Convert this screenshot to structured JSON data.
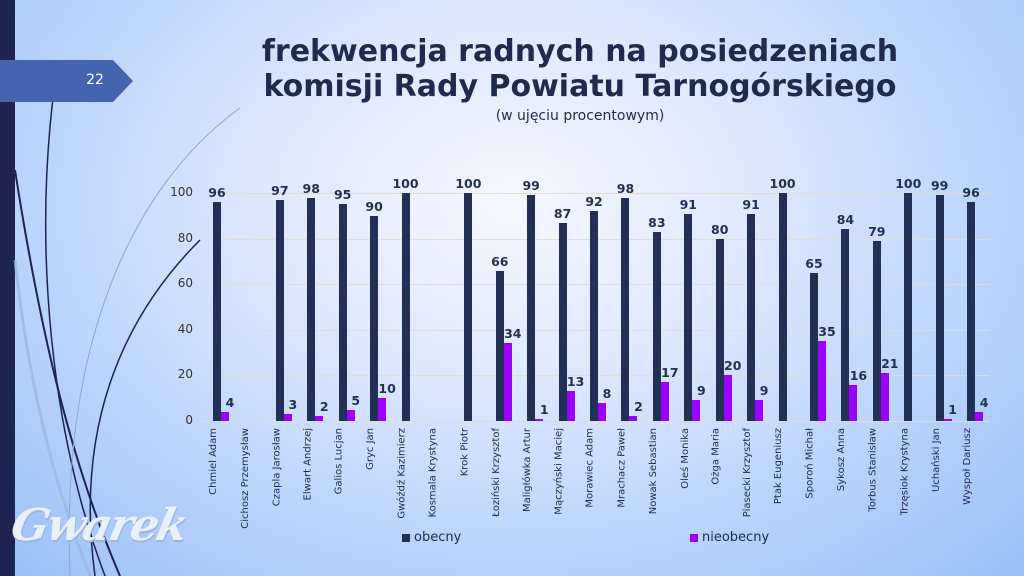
{
  "slide": {
    "number": "22",
    "title_line1": "frekwencja radnych na posiedzeniach",
    "title_line2": "komisji Rady Powiatu Tarnogórskiego",
    "subtitle": "(w ujęciu procentowym)",
    "logo_text": "Gwarek"
  },
  "colors": {
    "obecny": "#233055",
    "nieobecny": "#9900ff",
    "accent_tab": "#4563ae",
    "left_strip": "#1f2350"
  },
  "chart_data": {
    "type": "bar",
    "title": "frekwencja radnych na posiedzeniach komisji Rady Powiatu Tarnogórskiego",
    "subtitle": "(w ujęciu procentowym)",
    "xlabel": "",
    "ylabel": "",
    "ylim": [
      0,
      100
    ],
    "yticks": [
      0,
      20,
      40,
      60,
      80,
      100
    ],
    "grid": true,
    "legend_position": "bottom",
    "categories": [
      "Chmiel Adam",
      "Cichosz Przemysław",
      "Czapla Jarosław",
      "Elwart Andrzej",
      "Galios Lucjan",
      "Gryc Jan",
      "Gwóźdź Kazimierz",
      "Kosmala Krystyna",
      "Krok Piotr",
      "Łoziński Krzysztof",
      "Maligłówka Artur",
      "Mączyński Maciej",
      "Morawiec Adam",
      "Mrachacz Paweł",
      "Nowak Sebastian",
      "Oleś Monika",
      "Ożga Maria",
      "Piasecki Krzysztof",
      "Ptak Eugeniusz",
      "Sporoń Michał",
      "Sykosz Anna",
      "Torbus Stanisław",
      "Trzęsiok Krystyna",
      "Uchański Jan",
      "Wyspoł Dariusz"
    ],
    "series": [
      {
        "name": "obecny",
        "values": [
          96,
          null,
          97,
          98,
          95,
          90,
          100,
          null,
          100,
          66,
          99,
          87,
          92,
          98,
          83,
          91,
          80,
          91,
          100,
          65,
          84,
          79,
          100,
          99,
          96
        ]
      },
      {
        "name": "nieobecny",
        "values": [
          4,
          null,
          3,
          2,
          5,
          10,
          null,
          null,
          null,
          34,
          1,
          13,
          8,
          2,
          17,
          9,
          20,
          9,
          null,
          35,
          16,
          21,
          null,
          1,
          4
        ]
      }
    ]
  }
}
